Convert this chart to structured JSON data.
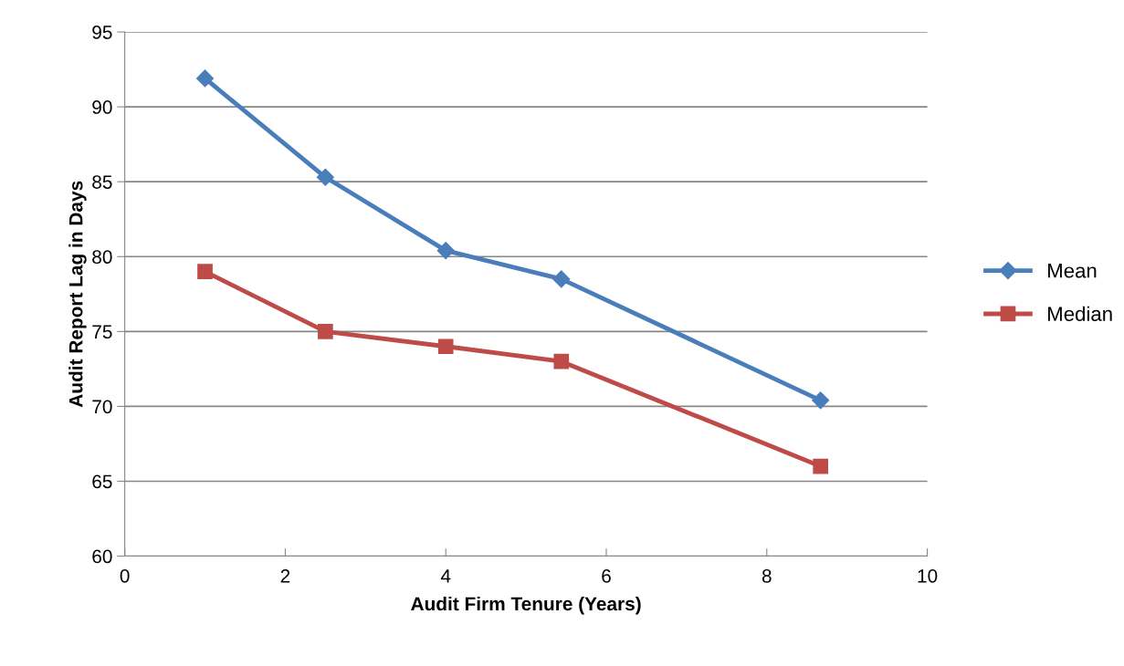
{
  "chart_data": {
    "type": "line",
    "xlabel": "Audit Firm Tenure (Years)",
    "ylabel": "Audit Report Lag in Days",
    "xlim": [
      0,
      10
    ],
    "xticks": [
      0,
      2,
      4,
      6,
      8,
      10
    ],
    "ylim": [
      60,
      95
    ],
    "yticks": [
      60,
      65,
      70,
      75,
      80,
      85,
      90,
      95
    ],
    "grid": "y",
    "legend": "right",
    "line_style": "solid",
    "series": [
      {
        "name": "Mean",
        "color": "#4a7ebb",
        "marker": "diamond",
        "x": [
          1.0,
          2.5,
          4.0,
          5.44,
          8.67
        ],
        "values": [
          91.9,
          85.3,
          80.4,
          78.5,
          70.4
        ]
      },
      {
        "name": "Median",
        "color": "#be4b48",
        "marker": "square",
        "x": [
          1.0,
          2.5,
          4.0,
          5.44,
          8.67
        ],
        "values": [
          79,
          75,
          74,
          73,
          66
        ]
      }
    ]
  }
}
